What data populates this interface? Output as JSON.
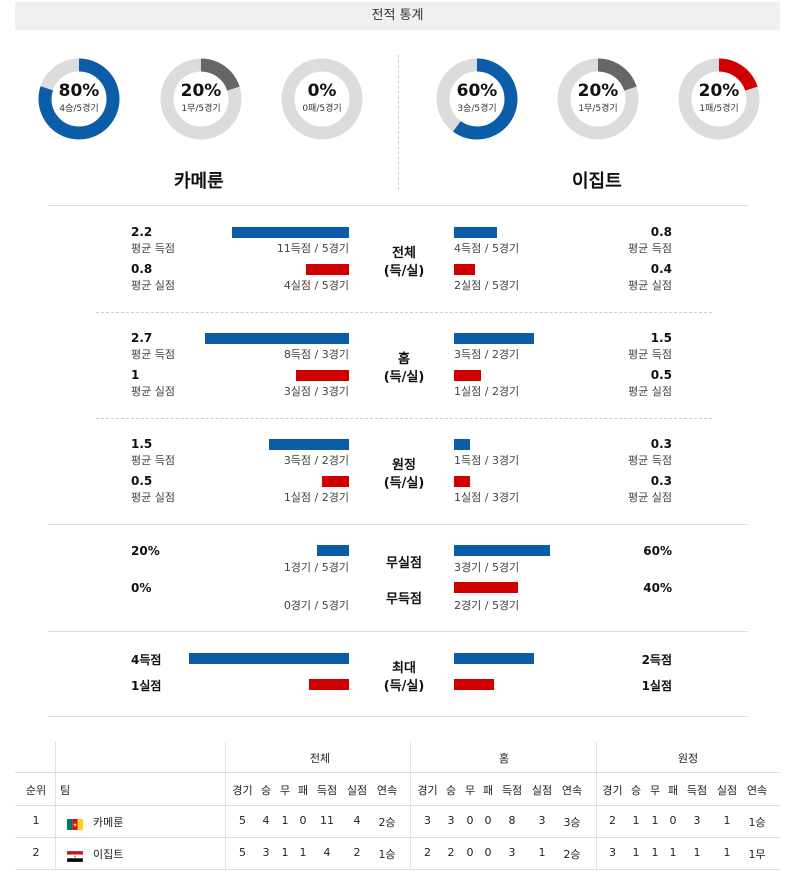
{
  "title": "전적 통계",
  "teams": {
    "home": {
      "name": "카메룬"
    },
    "away": {
      "name": "이집트"
    }
  },
  "donuts": [
    {
      "pct": "80%",
      "sub": "4승/5경기",
      "fraction": 0.8,
      "color": "#0b5da8"
    },
    {
      "pct": "20%",
      "sub": "1무/5경기",
      "fraction": 0.2,
      "color": "#666666"
    },
    {
      "pct": "0%",
      "sub": "0패/5경기",
      "fraction": 0.0,
      "color": "#d00000"
    },
    {
      "pct": "60%",
      "sub": "3승/5경기",
      "fraction": 0.6,
      "color": "#0b5da8"
    },
    {
      "pct": "20%",
      "sub": "1무/5경기",
      "fraction": 0.2,
      "color": "#666666"
    },
    {
      "pct": "20%",
      "sub": "1패/5경기",
      "fraction": 0.2,
      "color": "#d00000"
    }
  ],
  "sections": {
    "total": {
      "label1": "전체",
      "label2": "(득/실)",
      "home": {
        "avg_for": "2.2",
        "avg_for_label": "평균 득점",
        "for_count": "11득점 / 5경기",
        "avg_against": "0.8",
        "avg_against_label": "평균 실점",
        "against_count": "4실점 / 5경기"
      },
      "away": {
        "avg_for": "0.8",
        "avg_for_label": "평균 득점",
        "for_count": "4득점 / 5경기",
        "avg_against": "0.4",
        "avg_against_label": "평균 실점",
        "against_count": "2실점 / 5경기"
      }
    },
    "home_games": {
      "label1": "홈",
      "label2": "(득/실)",
      "home": {
        "avg_for": "2.7",
        "avg_for_label": "평균 득점",
        "for_count": "8득점 / 3경기",
        "avg_against": "1",
        "avg_against_label": "평균 실점",
        "against_count": "3실점 / 3경기"
      },
      "away": {
        "avg_for": "1.5",
        "avg_for_label": "평균 득점",
        "for_count": "3득점 / 2경기",
        "avg_against": "0.5",
        "avg_against_label": "평균 실점",
        "against_count": "1실점 / 2경기"
      }
    },
    "away_games": {
      "label1": "원정",
      "label2": "(득/실)",
      "home": {
        "avg_for": "1.5",
        "avg_for_label": "평균 득점",
        "for_count": "3득점 / 2경기",
        "avg_against": "0.5",
        "avg_against_label": "평균 실점",
        "against_count": "1실점 / 2경기"
      },
      "away": {
        "avg_for": "0.3",
        "avg_for_label": "평균 득점",
        "for_count": "1득점 / 3경기",
        "avg_against": "0.3",
        "avg_against_label": "평균 실점",
        "against_count": "1실점 / 3경기"
      }
    },
    "clean": {
      "label_clean": "무실점",
      "label_noscore": "무득점",
      "home": {
        "clean_pct": "20%",
        "clean_count": "1경기 / 5경기",
        "noscore_pct": "0%",
        "noscore_count": "0경기 / 5경기"
      },
      "away": {
        "clean_pct": "60%",
        "clean_count": "3경기 / 5경기",
        "noscore_pct": "40%",
        "noscore_count": "2경기 / 5경기"
      }
    },
    "max": {
      "label1": "최대",
      "label2": "(득/실)",
      "home": {
        "max_for": "4득점",
        "max_against": "1실점"
      },
      "away": {
        "max_for": "2득점",
        "max_against": "1실점"
      }
    }
  },
  "table": {
    "group_headers": [
      "전체",
      "홈",
      "원정"
    ],
    "col_rank": "순위",
    "col_team": "팀",
    "sub_headers": [
      "경기",
      "승",
      "무",
      "패",
      "득점",
      "실점",
      "연속"
    ],
    "rows": [
      {
        "rank": "1",
        "team": "카메룬",
        "total": [
          "5",
          "4",
          "1",
          "0",
          "11",
          "4",
          "2승"
        ],
        "home": [
          "3",
          "3",
          "0",
          "0",
          "8",
          "3",
          "3승"
        ],
        "away": [
          "2",
          "1",
          "1",
          "0",
          "3",
          "1",
          "1승"
        ]
      },
      {
        "rank": "2",
        "team": "이집트",
        "total": [
          "5",
          "3",
          "1",
          "1",
          "4",
          "2",
          "1승"
        ],
        "home": [
          "2",
          "2",
          "0",
          "0",
          "3",
          "1",
          "2승"
        ],
        "away": [
          "3",
          "1",
          "1",
          "1",
          "1",
          "1",
          "1무"
        ]
      }
    ]
  }
}
